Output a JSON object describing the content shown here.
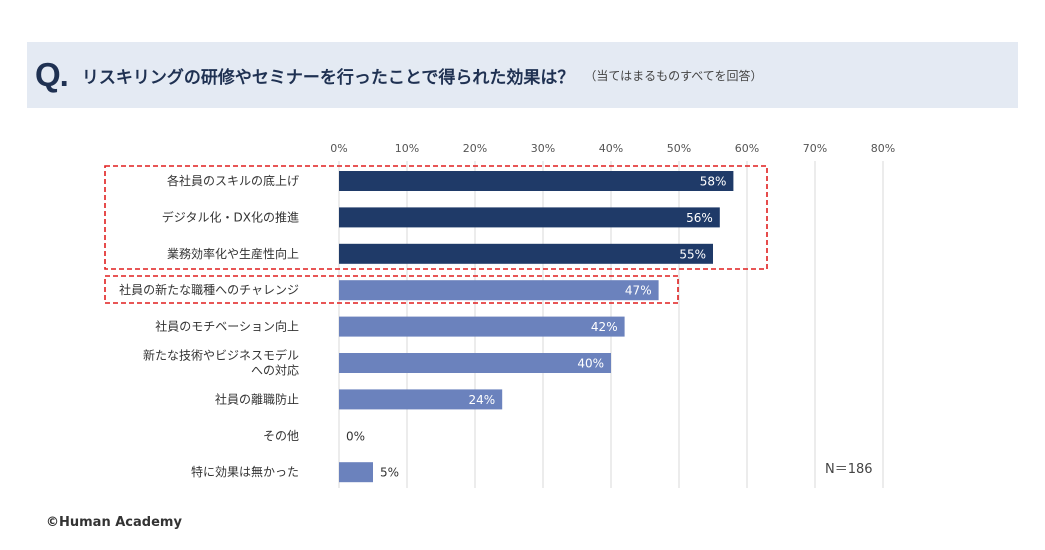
{
  "header": {
    "q_mark": "Q.",
    "title": "リスキリングの研修やセミナーを行ったことで得られた効果は？",
    "subtitle": "（当てはまるものすべてを回答）"
  },
  "chart_data": {
    "type": "bar",
    "orientation": "horizontal",
    "categories": [
      "各社員のスキルの底上げ",
      "デジタル化・DX化の推進",
      "業務効率化や生産性向上",
      "社員の新たな職種へのチャレンジ",
      "社員のモチベーション向上",
      "新たな技術やビジネスモデル\nへの対応",
      "社員の離職防止",
      "その他",
      "特に効果は無かった"
    ],
    "values": [
      58,
      56,
      55,
      47,
      42,
      40,
      24,
      0,
      5
    ],
    "value_labels": [
      "58%",
      "56%",
      "55%",
      "47%",
      "42%",
      "40%",
      "24%",
      "0%",
      "5%"
    ],
    "x_ticks": [
      "0%",
      "10%",
      "20%",
      "30%",
      "40%",
      "50%",
      "60%",
      "70%",
      "80%"
    ],
    "xlim": [
      0,
      80
    ],
    "grid": true,
    "colors": {
      "highlight": "#1f3a68",
      "normal": "#6b82bd",
      "dashed_box": "#e01f1f"
    },
    "highlighted_count": 3,
    "n_label": "N＝186"
  },
  "footer": {
    "copyright": "©Human Academy"
  }
}
